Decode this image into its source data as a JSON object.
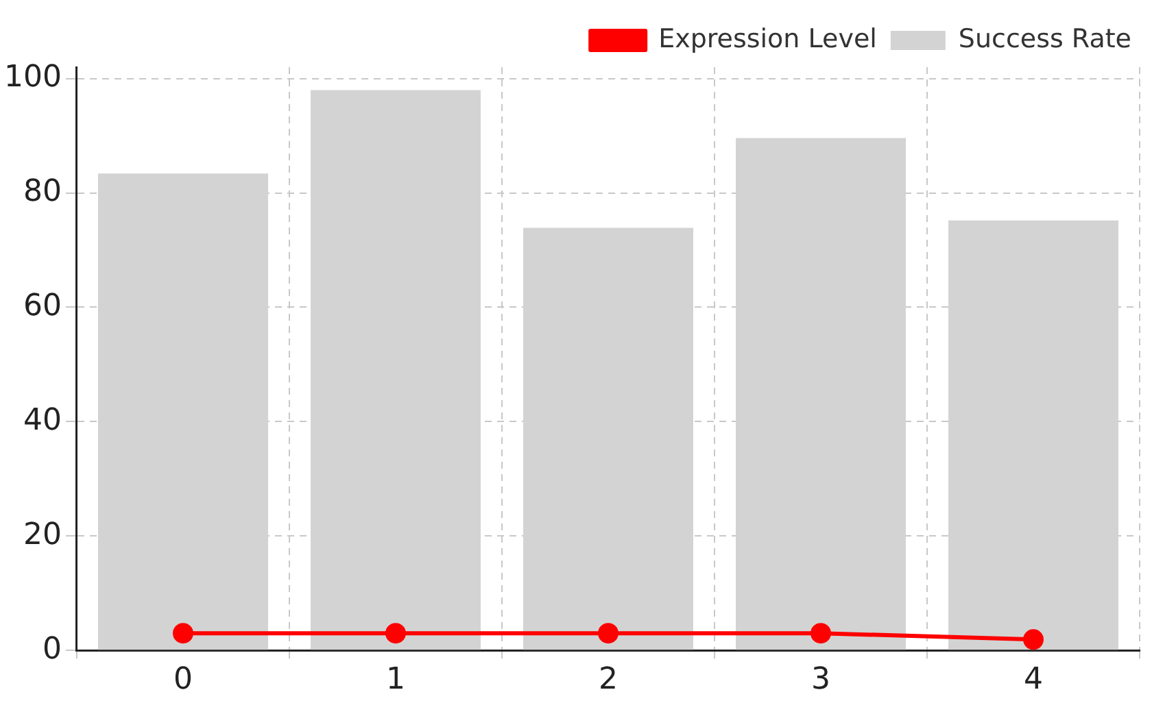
{
  "chart_data": {
    "type": "bar",
    "categories": [
      "0",
      "1",
      "2",
      "3",
      "4"
    ],
    "series": [
      {
        "name": "Expression Level",
        "type": "line",
        "color": "#ff0000",
        "values": [
          3.0,
          3.0,
          3.0,
          3.0,
          1.9
        ]
      },
      {
        "name": "Success Rate",
        "color": "#d3d3d3",
        "values": [
          83.4,
          98.0,
          73.9,
          89.6,
          75.2
        ]
      }
    ],
    "ylim": [
      0,
      102
    ],
    "yticks": [
      0,
      20,
      40,
      60,
      80,
      100
    ],
    "grid": true,
    "legend": "top right",
    "marker": "circle",
    "line_style": "solid"
  }
}
